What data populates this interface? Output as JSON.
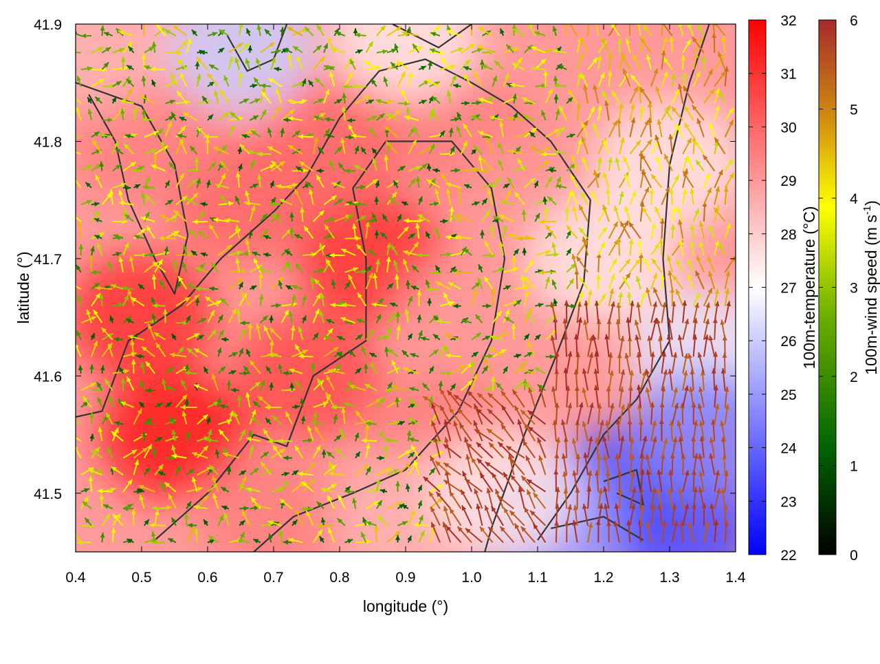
{
  "chart_data": {
    "type": "heatmap",
    "title": "",
    "xlabel": "longitude (°)",
    "ylabel": "latitude (°)",
    "xlim": [
      0.4,
      1.4
    ],
    "ylim": [
      41.45,
      41.9
    ],
    "x_ticks": [
      0.4,
      0.5,
      0.6,
      0.7,
      0.8,
      0.9,
      1.0,
      1.1,
      1.2,
      1.3,
      1.4
    ],
    "x_tick_labels": [
      "0.4",
      "0.5",
      "0.6",
      "0.7",
      "0.8",
      "0.9",
      "1.0",
      "1.1",
      "1.2",
      "1.3",
      "1.4"
    ],
    "y_ticks": [
      41.5,
      41.6,
      41.7,
      41.8,
      41.9
    ],
    "y_tick_labels": [
      "41.5",
      "41.6",
      "41.7",
      "41.8",
      "41.9"
    ],
    "colorbars": [
      {
        "label": "100m-temperature (°C)",
        "range": [
          22,
          32
        ],
        "ticks": [
          "22",
          "23",
          "24",
          "25",
          "26",
          "27",
          "28",
          "29",
          "30",
          "31",
          "32"
        ],
        "palette": [
          "#0000ff",
          "#ffffff",
          "#ff0000"
        ]
      },
      {
        "label_main": "100m-wind speed (m s",
        "label_sup": "-1",
        "label_close": ")",
        "range": [
          0,
          6
        ],
        "ticks": [
          "0",
          "1",
          "2",
          "3",
          "4",
          "5",
          "6"
        ],
        "palette": [
          "#000000",
          "#006400",
          "#6fb000",
          "#ffff00",
          "#d08a10",
          "#a52a2a"
        ]
      }
    ],
    "temperature_field": [
      {
        "lon": 0.55,
        "lat": 41.55,
        "value": 31.5
      },
      {
        "lon": 0.5,
        "lat": 41.65,
        "value": 31
      },
      {
        "lon": 0.75,
        "lat": 41.6,
        "value": 30.5
      },
      {
        "lon": 0.85,
        "lat": 41.7,
        "value": 31
      },
      {
        "lon": 0.8,
        "lat": 41.8,
        "value": 30
      },
      {
        "lon": 0.65,
        "lat": 41.75,
        "value": 30
      },
      {
        "lon": 0.5,
        "lat": 41.8,
        "value": 29.5
      },
      {
        "lon": 1.0,
        "lat": 41.8,
        "value": 29.5
      },
      {
        "lon": 1.0,
        "lat": 41.65,
        "value": 29
      },
      {
        "lon": 1.1,
        "lat": 41.75,
        "value": 29
      },
      {
        "lon": 0.95,
        "lat": 41.55,
        "value": 29.5
      },
      {
        "lon": 0.7,
        "lat": 41.48,
        "value": 29.5
      },
      {
        "lon": 0.9,
        "lat": 41.48,
        "value": 28.5
      },
      {
        "lon": 0.65,
        "lat": 41.88,
        "value": 26
      },
      {
        "lon": 0.9,
        "lat": 41.89,
        "value": 27.5
      },
      {
        "lon": 1.2,
        "lat": 41.7,
        "value": 27.5
      },
      {
        "lon": 1.3,
        "lat": 41.78,
        "value": 27.5
      },
      {
        "lon": 1.35,
        "lat": 41.62,
        "value": 26.5
      },
      {
        "lon": 1.22,
        "lat": 41.5,
        "value": 23.5
      },
      {
        "lon": 1.32,
        "lat": 41.47,
        "value": 23.5
      },
      {
        "lon": 1.35,
        "lat": 41.55,
        "value": 24.5
      },
      {
        "lon": 1.12,
        "lat": 41.47,
        "value": 25
      },
      {
        "lon": 1.2,
        "lat": 41.88,
        "value": 29
      },
      {
        "lon": 0.43,
        "lat": 41.88,
        "value": 28.5
      },
      {
        "lon": 1.05,
        "lat": 41.5,
        "value": 27.5
      }
    ],
    "wind_vectors": {
      "spacing_deg": 0.016,
      "note_values": "wind speed in m s-1, direction as vector"
    }
  }
}
